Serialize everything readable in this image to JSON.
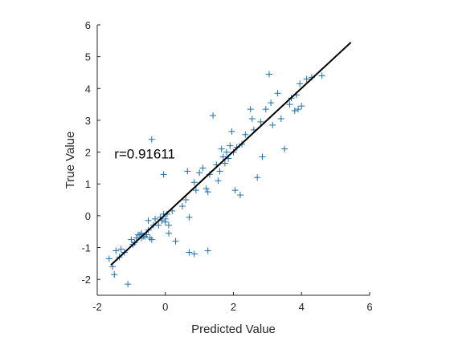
{
  "chart_data": {
    "type": "scatter",
    "xlabel": "Predicted Value",
    "ylabel": "True Value",
    "xlim": [
      -2,
      6
    ],
    "ylim": [
      -2.5,
      6
    ],
    "xticks": [
      -2,
      0,
      2,
      4,
      6
    ],
    "yticks": [
      -2,
      -1,
      0,
      1,
      2,
      3,
      4,
      5,
      6
    ],
    "grid": false,
    "marker": "+",
    "marker_color": "#1f6fa8",
    "line_color": "#000000",
    "annotation": {
      "text": "r=0.91611",
      "x": -1.5,
      "y": 1.95
    },
    "fit_line": {
      "x": [
        -1.6,
        5.45
      ],
      "y": [
        -1.55,
        5.45
      ]
    },
    "points": [
      [
        -1.65,
        -1.35
      ],
      [
        -1.55,
        -1.6
      ],
      [
        -1.5,
        -1.85
      ],
      [
        -1.45,
        -1.1
      ],
      [
        -1.35,
        -1.3
      ],
      [
        -1.3,
        -1.05
      ],
      [
        -1.2,
        -1.15
      ],
      [
        -1.1,
        -2.15
      ],
      [
        -1.0,
        -0.75
      ],
      [
        -0.95,
        -0.9
      ],
      [
        -0.9,
        -0.85
      ],
      [
        -0.85,
        -0.7
      ],
      [
        -0.8,
        -0.6
      ],
      [
        -0.75,
        -0.6
      ],
      [
        -0.7,
        -0.55
      ],
      [
        -0.7,
        -0.7
      ],
      [
        -0.65,
        -0.65
      ],
      [
        -0.6,
        -0.65
      ],
      [
        -0.55,
        -0.6
      ],
      [
        -0.5,
        -0.15
      ],
      [
        -0.5,
        -0.45
      ],
      [
        -0.45,
        -0.7
      ],
      [
        -0.4,
        -0.75
      ],
      [
        -0.4,
        2.4
      ],
      [
        -0.35,
        -0.3
      ],
      [
        -0.3,
        -0.1
      ],
      [
        -0.2,
        -0.3
      ],
      [
        -0.15,
        -0.05
      ],
      [
        -0.1,
        -0.15
      ],
      [
        -0.05,
        0.05
      ],
      [
        0.0,
        -0.1
      ],
      [
        0.0,
        -0.2
      ],
      [
        0.05,
        0.05
      ],
      [
        0.1,
        -0.55
      ],
      [
        0.1,
        -0.3
      ],
      [
        -0.05,
        1.3
      ],
      [
        0.2,
        0.15
      ],
      [
        0.3,
        -0.8
      ],
      [
        0.5,
        0.3
      ],
      [
        0.6,
        0.5
      ],
      [
        0.65,
        1.4
      ],
      [
        0.7,
        -0.05
      ],
      [
        0.7,
        -1.15
      ],
      [
        0.85,
        -1.2
      ],
      [
        0.85,
        1.05
      ],
      [
        0.9,
        0.8
      ],
      [
        1.0,
        1.35
      ],
      [
        1.1,
        1.5
      ],
      [
        1.2,
        0.85
      ],
      [
        1.25,
        0.75
      ],
      [
        1.25,
        -1.1
      ],
      [
        1.3,
        1.3
      ],
      [
        1.4,
        3.15
      ],
      [
        1.5,
        1.6
      ],
      [
        1.55,
        1.1
      ],
      [
        1.6,
        1.4
      ],
      [
        1.65,
        2.1
      ],
      [
        1.7,
        1.85
      ],
      [
        1.75,
        1.65
      ],
      [
        1.8,
        2.0
      ],
      [
        1.85,
        1.8
      ],
      [
        1.9,
        2.2
      ],
      [
        1.95,
        2.65
      ],
      [
        2.0,
        2.0
      ],
      [
        2.05,
        0.8
      ],
      [
        2.1,
        2.15
      ],
      [
        2.2,
        0.65
      ],
      [
        2.25,
        2.25
      ],
      [
        2.35,
        2.55
      ],
      [
        2.5,
        3.35
      ],
      [
        2.55,
        3.05
      ],
      [
        2.6,
        2.7
      ],
      [
        2.7,
        1.2
      ],
      [
        2.8,
        2.95
      ],
      [
        2.85,
        1.85
      ],
      [
        2.95,
        3.35
      ],
      [
        3.05,
        4.45
      ],
      [
        3.1,
        3.55
      ],
      [
        3.15,
        2.85
      ],
      [
        3.3,
        3.85
      ],
      [
        3.4,
        3.05
      ],
      [
        3.5,
        2.1
      ],
      [
        3.65,
        3.5
      ],
      [
        3.7,
        3.7
      ],
      [
        3.8,
        3.3
      ],
      [
        3.85,
        3.8
      ],
      [
        3.95,
        4.15
      ],
      [
        4.15,
        4.3
      ],
      [
        4.3,
        4.35
      ],
      [
        4.6,
        4.4
      ],
      [
        4.0,
        3.45
      ],
      [
        3.9,
        3.35
      ]
    ]
  }
}
